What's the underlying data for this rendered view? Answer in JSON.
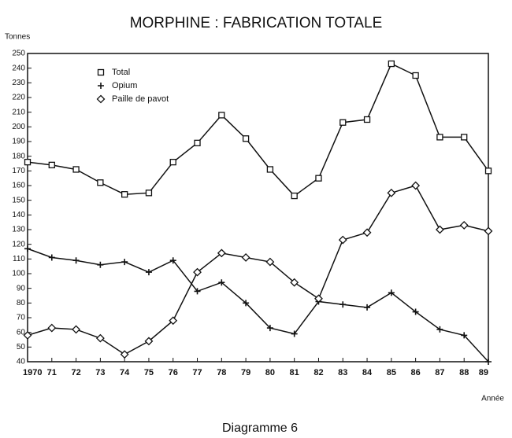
{
  "chart_data": {
    "type": "line",
    "title": "MORPHINE : FABRICATION TOTALE",
    "y_label": "Tonnes",
    "x_label": "Année",
    "caption": "Diagramme 6",
    "categories": [
      "1970",
      "71",
      "72",
      "73",
      "74",
      "75",
      "76",
      "77",
      "78",
      "79",
      "80",
      "81",
      "82",
      "83",
      "84",
      "85",
      "86",
      "87",
      "88",
      "89"
    ],
    "series": [
      {
        "name": "Total",
        "color": "#111111",
        "marker": "square",
        "values": [
          176,
          174,
          171,
          162,
          154,
          155,
          176,
          189,
          208,
          192,
          171,
          153,
          165,
          203,
          205,
          243,
          235,
          193,
          193,
          170
        ]
      },
      {
        "name": "Opium",
        "color": "#111111",
        "marker": "plus",
        "values": [
          117,
          111,
          109,
          106,
          108,
          101,
          109,
          88,
          94,
          80,
          63,
          59,
          81,
          79,
          77,
          87,
          74,
          62,
          58,
          40
        ]
      },
      {
        "name": "Paille de pavot",
        "color": "#111111",
        "marker": "diamond",
        "values": [
          58,
          63,
          62,
          56,
          45,
          54,
          68,
          101,
          114,
          111,
          108,
          94,
          83,
          123,
          128,
          155,
          160,
          130,
          133,
          129
        ]
      }
    ],
    "ylim": [
      40,
      250
    ],
    "yticks": [
      40,
      50,
      60,
      70,
      80,
      90,
      100,
      110,
      120,
      130,
      140,
      150,
      160,
      170,
      180,
      190,
      200,
      210,
      220,
      230,
      240,
      250
    ],
    "grid": false
  }
}
